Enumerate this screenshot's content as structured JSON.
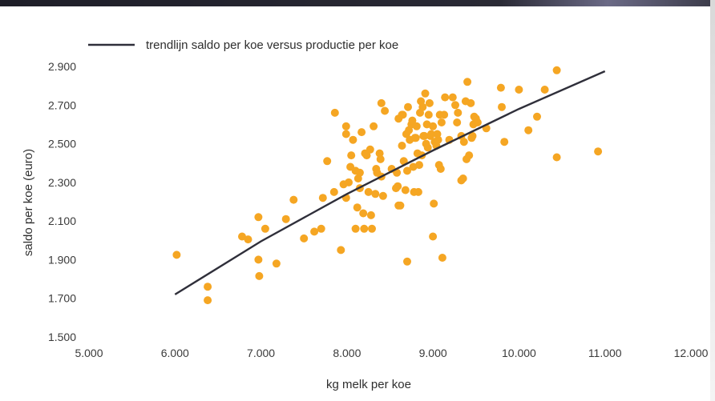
{
  "chart_data": {
    "type": "scatter",
    "legend": {
      "label": "trendlijn saldo per koe versus productie per koe",
      "placement": "top-left"
    },
    "xlabel": "kg melk per koe",
    "ylabel": "saldo per koe (euro)",
    "xlim": [
      5000,
      12000
    ],
    "ylim": [
      1500,
      2900
    ],
    "x_ticks": [
      5000,
      6000,
      7000,
      8000,
      9000,
      10000,
      11000,
      12000
    ],
    "x_tick_labels": [
      "5.000",
      "6.000",
      "7.000",
      "8.000",
      "9.000",
      "10.000",
      "11.000",
      "12.000"
    ],
    "y_ticks": [
      1500,
      1700,
      1900,
      2100,
      2300,
      2500,
      2700,
      2900
    ],
    "y_tick_labels": [
      "1.500",
      "1.700",
      "1.900",
      "2.100",
      "2.300",
      "2.500",
      "2.700",
      "2.900"
    ],
    "grid": false,
    "colors": {
      "points": "#f5a623",
      "trend": "#2f2f3a",
      "text": "#2e2e2e"
    },
    "trendline": [
      [
        6000,
        1720
      ],
      [
        7000,
        1995
      ],
      [
        8000,
        2240
      ],
      [
        9000,
        2465
      ],
      [
        10000,
        2680
      ],
      [
        11000,
        2875
      ]
    ],
    "points": [
      [
        6020,
        1925
      ],
      [
        6380,
        1760
      ],
      [
        6380,
        1690
      ],
      [
        6780,
        2020
      ],
      [
        6850,
        2005
      ],
      [
        6970,
        2120
      ],
      [
        6970,
        1900
      ],
      [
        6980,
        1815
      ],
      [
        7050,
        2060
      ],
      [
        7180,
        1880
      ],
      [
        7290,
        2110
      ],
      [
        7380,
        2210
      ],
      [
        7500,
        2010
      ],
      [
        7620,
        2045
      ],
      [
        7700,
        2060
      ],
      [
        7720,
        2220
      ],
      [
        7770,
        2410
      ],
      [
        7850,
        2250
      ],
      [
        7860,
        2660
      ],
      [
        7930,
        1950
      ],
      [
        7960,
        2290
      ],
      [
        7990,
        2220
      ],
      [
        7990,
        2550
      ],
      [
        7990,
        2590
      ],
      [
        8020,
        2300
      ],
      [
        8040,
        2380
      ],
      [
        8050,
        2440
      ],
      [
        8070,
        2520
      ],
      [
        8100,
        2360
      ],
      [
        8100,
        2060
      ],
      [
        8120,
        2170
      ],
      [
        8130,
        2320
      ],
      [
        8150,
        2350
      ],
      [
        8150,
        2270
      ],
      [
        8170,
        2560
      ],
      [
        8190,
        2140
      ],
      [
        8200,
        2060
      ],
      [
        8210,
        2450
      ],
      [
        8230,
        2440
      ],
      [
        8250,
        2250
      ],
      [
        8270,
        2470
      ],
      [
        8280,
        2130
      ],
      [
        8290,
        2060
      ],
      [
        8310,
        2590
      ],
      [
        8330,
        2240
      ],
      [
        8340,
        2370
      ],
      [
        8350,
        2350
      ],
      [
        8380,
        2450
      ],
      [
        8390,
        2420
      ],
      [
        8400,
        2710
      ],
      [
        8400,
        2330
      ],
      [
        8420,
        2230
      ],
      [
        8440,
        2670
      ],
      [
        8520,
        2370
      ],
      [
        8570,
        2270
      ],
      [
        8580,
        2350
      ],
      [
        8590,
        2280
      ],
      [
        8600,
        2630
      ],
      [
        8600,
        2180
      ],
      [
        8620,
        2180
      ],
      [
        8640,
        2490
      ],
      [
        8640,
        2650
      ],
      [
        8650,
        2650
      ],
      [
        8660,
        2410
      ],
      [
        8680,
        2260
      ],
      [
        8690,
        2550
      ],
      [
        8700,
        2360
      ],
      [
        8700,
        1890
      ],
      [
        8710,
        2690
      ],
      [
        8720,
        2570
      ],
      [
        8730,
        2520
      ],
      [
        8750,
        2600
      ],
      [
        8760,
        2620
      ],
      [
        8770,
        2380
      ],
      [
        8780,
        2250
      ],
      [
        8790,
        2530
      ],
      [
        8800,
        2530
      ],
      [
        8810,
        2590
      ],
      [
        8820,
        2450
      ],
      [
        8830,
        2250
      ],
      [
        8840,
        2390
      ],
      [
        8850,
        2660
      ],
      [
        8860,
        2720
      ],
      [
        8870,
        2440
      ],
      [
        8880,
        2690
      ],
      [
        8890,
        2540
      ],
      [
        8900,
        2540
      ],
      [
        8910,
        2760
      ],
      [
        8920,
        2500
      ],
      [
        8930,
        2600
      ],
      [
        8940,
        2480
      ],
      [
        8950,
        2650
      ],
      [
        8960,
        2710
      ],
      [
        8970,
        2540
      ],
      [
        8980,
        2550
      ],
      [
        9000,
        2590
      ],
      [
        9000,
        2020
      ],
      [
        9010,
        2190
      ],
      [
        9020,
        2510
      ],
      [
        9040,
        2490
      ],
      [
        9050,
        2550
      ],
      [
        9060,
        2520
      ],
      [
        9070,
        2390
      ],
      [
        9080,
        2650
      ],
      [
        9090,
        2370
      ],
      [
        9100,
        2610
      ],
      [
        9110,
        1910
      ],
      [
        9130,
        2650
      ],
      [
        9140,
        2740
      ],
      [
        9190,
        2520
      ],
      [
        9230,
        2740
      ],
      [
        9260,
        2700
      ],
      [
        9280,
        2610
      ],
      [
        9290,
        2660
      ],
      [
        9330,
        2310
      ],
      [
        9330,
        2540
      ],
      [
        9350,
        2320
      ],
      [
        9360,
        2510
      ],
      [
        9380,
        2720
      ],
      [
        9390,
        2420
      ],
      [
        9400,
        2820
      ],
      [
        9420,
        2440
      ],
      [
        9440,
        2710
      ],
      [
        9450,
        2530
      ],
      [
        9460,
        2540
      ],
      [
        9470,
        2600
      ],
      [
        9480,
        2640
      ],
      [
        9500,
        2630
      ],
      [
        9520,
        2610
      ],
      [
        9620,
        2580
      ],
      [
        9790,
        2790
      ],
      [
        9800,
        2690
      ],
      [
        9830,
        2510
      ],
      [
        10000,
        2780
      ],
      [
        10110,
        2570
      ],
      [
        10210,
        2640
      ],
      [
        10300,
        2780
      ],
      [
        10440,
        2880
      ],
      [
        10440,
        2430
      ],
      [
        10920,
        2460
      ]
    ]
  }
}
